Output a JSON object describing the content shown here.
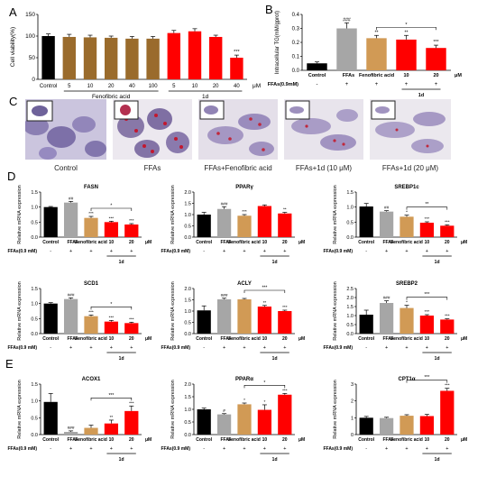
{
  "colors": {
    "black": "#000000",
    "gray": "#a6a6a6",
    "orange": "#d19a55",
    "brown": "#9a6b2c",
    "red": "#ff0000"
  },
  "panel_labels": [
    "A",
    "B",
    "C",
    "D",
    "E"
  ],
  "panelA": {
    "ylabel": "Cell viability(%)",
    "unit": "μM",
    "groups": [
      "Fenofibric acid",
      "1d"
    ],
    "categories": [
      "Control",
      "5",
      "10",
      "20",
      "40",
      "100",
      "5",
      "10",
      "20",
      "40"
    ],
    "values": [
      100,
      98,
      97,
      96,
      94,
      94,
      107,
      111,
      98,
      50
    ],
    "errors": [
      5,
      6,
      5,
      4,
      5,
      5,
      6,
      6,
      4,
      6
    ],
    "colors": [
      "#000000",
      "#9a6b2c",
      "#9a6b2c",
      "#9a6b2c",
      "#9a6b2c",
      "#9a6b2c",
      "#ff0000",
      "#ff0000",
      "#ff0000",
      "#ff0000"
    ],
    "sig": [
      "",
      "",
      "",
      "",
      "",
      "",
      "",
      "",
      "",
      "***"
    ],
    "ylim": [
      0,
      150
    ],
    "ticks": [
      0,
      50,
      100,
      150
    ]
  },
  "panelB": {
    "ylabel": "Intracellular TG(mM/gprot)",
    "unit": "μM",
    "categories": [
      "Control",
      "FFAs",
      "Fenofibric acid",
      "10",
      "20"
    ],
    "group": "1d",
    "values": [
      0.05,
      0.3,
      0.23,
      0.22,
      0.16
    ],
    "errors": [
      0.01,
      0.04,
      0.02,
      0.03,
      0.02
    ],
    "colors": [
      "#000000",
      "#a6a6a6",
      "#d19a55",
      "#ff0000",
      "#ff0000"
    ],
    "sig": [
      "",
      "###",
      "**",
      "**",
      "***"
    ],
    "bracket_sig": "*",
    "ylim": [
      0,
      0.4
    ],
    "ticks": [
      0,
      0.1,
      0.2,
      0.3,
      0.4
    ],
    "tick_labels": [
      "0.0",
      "0.1",
      "0.2",
      "0.3",
      "0.4"
    ],
    "ffa_label": "FFAs(0.9mM)",
    "ffa_signs": [
      "-",
      "+",
      "+",
      "+",
      "+"
    ]
  },
  "panelC": {
    "captions": [
      "Control",
      "FFAs",
      "FFAs+Fenofibric acid",
      "FFAs+1d  (10 μM)",
      "FFAs+1d  (20 μM)"
    ]
  },
  "rowD_E_common": {
    "ylabel": "Relative mRNA expression",
    "categories": [
      "Control",
      "FFAs",
      "Fenofibric acid",
      "10",
      "20"
    ],
    "colors": [
      "#000000",
      "#a6a6a6",
      "#d19a55",
      "#ff0000",
      "#ff0000"
    ],
    "ffa_signs": [
      "-",
      "+",
      "+",
      "+",
      "+"
    ],
    "unit": "μM",
    "group": "1d"
  },
  "genes": [
    {
      "title": "FASN",
      "ffa_label": "FFAs(0.9 mM)",
      "values": [
        1.0,
        1.15,
        0.64,
        0.5,
        0.42
      ],
      "errors": [
        0.02,
        0.04,
        0.05,
        0.03,
        0.03
      ],
      "sig": [
        "",
        "##",
        "***",
        "***",
        "***"
      ],
      "bracket_sig": "*",
      "ylim": [
        0,
        1.5
      ],
      "ticks": [
        0,
        0.5,
        1.0,
        1.5
      ],
      "tick_labels": [
        "0.0",
        "0.5",
        "1.0",
        "1.5"
      ]
    },
    {
      "title": "PPARγ",
      "ffa_label": "FFAs(0.9 mM)",
      "values": [
        1.0,
        1.25,
        0.95,
        1.38,
        1.05
      ],
      "errors": [
        0.1,
        0.1,
        0.05,
        0.05,
        0.05
      ],
      "sig": [
        "",
        "###",
        "***",
        "",
        "**"
      ],
      "bracket_sig": "",
      "ylim": [
        0,
        2.0
      ],
      "ticks": [
        0,
        0.5,
        1.0,
        1.5,
        2.0
      ],
      "tick_labels": [
        "0.0",
        "0.5",
        "1.0",
        "1.5",
        "2.0"
      ]
    },
    {
      "title": "SREBP1c",
      "ffa_label": "FFAs(0.9 mM)",
      "values": [
        1.02,
        0.85,
        0.68,
        0.48,
        0.38
      ],
      "errors": [
        0.1,
        0.03,
        0.05,
        0.03,
        0.03
      ],
      "sig": [
        "",
        "##",
        "*",
        "***",
        "***"
      ],
      "bracket_sig": "**",
      "ylim": [
        0,
        1.5
      ],
      "ticks": [
        0,
        0.5,
        1.0,
        1.5
      ],
      "tick_labels": [
        "0.0",
        "0.5",
        "1.0",
        "1.5"
      ]
    },
    {
      "title": "SCD1",
      "ffa_label": "FFAs(0.9 mM)",
      "values": [
        1.0,
        1.15,
        0.58,
        0.4,
        0.35
      ],
      "errors": [
        0.03,
        0.04,
        0.04,
        0.04,
        0.03
      ],
      "sig": [
        "",
        "###",
        "***",
        "***",
        "***"
      ],
      "bracket_sig": "*",
      "ylim": [
        0,
        1.5
      ],
      "ticks": [
        0,
        0.5,
        1.0,
        1.5
      ],
      "tick_labels": [
        "0.0",
        "0.5",
        "1.0",
        "1.5"
      ]
    },
    {
      "title": "ACLY",
      "ffa_label": "FFAs(0.9 mM)",
      "values": [
        1.03,
        1.52,
        1.52,
        1.2,
        1.0
      ],
      "errors": [
        0.2,
        0.05,
        0.04,
        0.05,
        0.04
      ],
      "sig": [
        "",
        "###",
        "",
        "**",
        "***"
      ],
      "bracket_sig": "***",
      "ylim": [
        0,
        2.0
      ],
      "ticks": [
        0,
        0.5,
        1.0,
        1.5,
        2.0
      ],
      "tick_labels": [
        "0.0",
        "0.5",
        "1.0",
        "1.5",
        "2.0"
      ]
    },
    {
      "title": "SREBP2",
      "ffa_label": "FFAs(0.9 mM)",
      "values": [
        1.05,
        1.7,
        1.42,
        1.0,
        0.78
      ],
      "errors": [
        0.25,
        0.12,
        0.15,
        0.05,
        0.04
      ],
      "sig": [
        "",
        "###",
        "*",
        "***",
        "***"
      ],
      "bracket_sig": "***",
      "ylim": [
        0,
        2.5
      ],
      "ticks": [
        0,
        0.5,
        1.0,
        1.5,
        2.0,
        2.5
      ],
      "tick_labels": [
        "0.0",
        "0.5",
        "1.0",
        "1.5",
        "2.0",
        "2.5"
      ]
    },
    {
      "title": "ACOX1",
      "ffa_label": "FFAs(0.9 mM)",
      "values": [
        0.97,
        0.08,
        0.2,
        0.33,
        0.7
      ],
      "errors": [
        0.25,
        0.03,
        0.08,
        0.1,
        0.15
      ],
      "sig": [
        "",
        "###",
        "",
        "**",
        "***"
      ],
      "bracket_sig": "***",
      "ylim": [
        0,
        1.5
      ],
      "ticks": [
        0,
        0.5,
        1.0,
        1.5
      ],
      "tick_labels": [
        "0.0",
        "0.5",
        "1.0",
        "1.5"
      ]
    },
    {
      "title": "PPARα",
      "ffa_label": "FFAs(0.9 mM)",
      "values": [
        1.0,
        0.8,
        1.2,
        0.98,
        1.58
      ],
      "errors": [
        0.05,
        0.03,
        0.05,
        0.2,
        0.05
      ],
      "sig": [
        "",
        "#",
        "*",
        "*",
        "***"
      ],
      "bracket_sig": "*",
      "ylim": [
        0,
        2.0
      ],
      "ticks": [
        0,
        0.5,
        1.0,
        1.5,
        2.0
      ],
      "tick_labels": [
        "0.0",
        "0.5",
        "1.0",
        "1.5",
        "2.0"
      ]
    },
    {
      "title": "CPT1α",
      "ffa_label": "FFAs(0.9 mM)",
      "values": [
        1.0,
        0.98,
        1.12,
        1.1,
        2.6
      ],
      "errors": [
        0.08,
        0.05,
        0.06,
        0.1,
        0.15
      ],
      "sig": [
        "",
        "",
        "",
        "",
        "***"
      ],
      "bracket_sig": "***",
      "ylim": [
        0,
        3
      ],
      "ticks": [
        0,
        1,
        2,
        3
      ],
      "tick_labels": [
        "0",
        "1",
        "2",
        "3"
      ]
    }
  ],
  "chart_data": [
    {
      "type": "bar",
      "panel": "A",
      "ylabel": "Cell viability(%)",
      "categories": [
        "Control",
        "5",
        "10",
        "20",
        "40",
        "100",
        "5",
        "10",
        "20",
        "40"
      ],
      "values": [
        100,
        98,
        97,
        96,
        94,
        94,
        107,
        111,
        98,
        50
      ],
      "ylim": [
        0,
        150
      ]
    },
    {
      "type": "bar",
      "panel": "B",
      "ylabel": "Intracellular TG(mM/gprot)",
      "categories": [
        "Control",
        "FFAs",
        "Fenofibric acid",
        "10",
        "20"
      ],
      "values": [
        0.05,
        0.3,
        0.23,
        0.22,
        0.16
      ],
      "ylim": [
        0,
        0.4
      ]
    },
    {
      "type": "bar",
      "panel": "D",
      "title": "FASN",
      "categories": [
        "Control",
        "FFAs",
        "Fenofibric acid",
        "10",
        "20"
      ],
      "values": [
        1.0,
        1.15,
        0.64,
        0.5,
        0.42
      ]
    },
    {
      "type": "bar",
      "panel": "D",
      "title": "PPARγ",
      "categories": [
        "Control",
        "FFAs",
        "Fenofibric acid",
        "10",
        "20"
      ],
      "values": [
        1.0,
        1.25,
        0.95,
        1.38,
        1.05
      ]
    },
    {
      "type": "bar",
      "panel": "D",
      "title": "SREBP1c",
      "categories": [
        "Control",
        "FFAs",
        "Fenofibric acid",
        "10",
        "20"
      ],
      "values": [
        1.02,
        0.85,
        0.68,
        0.48,
        0.38
      ]
    },
    {
      "type": "bar",
      "panel": "D",
      "title": "SCD1",
      "categories": [
        "Control",
        "FFAs",
        "Fenofibric acid",
        "10",
        "20"
      ],
      "values": [
        1.0,
        1.15,
        0.58,
        0.4,
        0.35
      ]
    },
    {
      "type": "bar",
      "panel": "D",
      "title": "ACLY",
      "categories": [
        "Control",
        "FFAs",
        "Fenofibric acid",
        "10",
        "20"
      ],
      "values": [
        1.03,
        1.52,
        1.52,
        1.2,
        1.0
      ]
    },
    {
      "type": "bar",
      "panel": "D",
      "title": "SREBP2",
      "categories": [
        "Control",
        "FFAs",
        "Fenofibric acid",
        "10",
        "20"
      ],
      "values": [
        1.05,
        1.7,
        1.42,
        1.0,
        0.78
      ]
    },
    {
      "type": "bar",
      "panel": "E",
      "title": "ACOX1",
      "categories": [
        "Control",
        "FFAs",
        "Fenofibric acid",
        "10",
        "20"
      ],
      "values": [
        0.97,
        0.08,
        0.2,
        0.33,
        0.7
      ]
    },
    {
      "type": "bar",
      "panel": "E",
      "title": "PPARα",
      "categories": [
        "Control",
        "FFAs",
        "Fenofibric acid",
        "10",
        "20"
      ],
      "values": [
        1.0,
        0.8,
        1.2,
        0.98,
        1.58
      ]
    },
    {
      "type": "bar",
      "panel": "E",
      "title": "CPT1α",
      "categories": [
        "Control",
        "FFAs",
        "Fenofibric acid",
        "10",
        "20"
      ],
      "values": [
        1.0,
        0.98,
        1.12,
        1.1,
        2.6
      ]
    }
  ]
}
